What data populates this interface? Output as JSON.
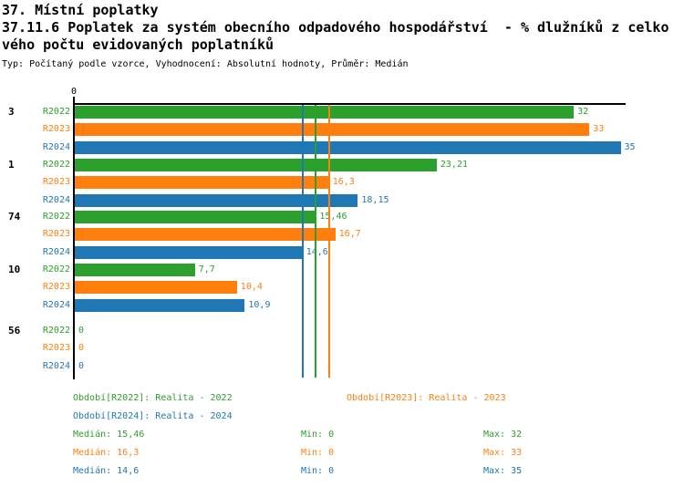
{
  "header": {
    "title": "37. Místní poplatky",
    "subtitle_line1": "37.11.6 Poplatek za systém obecního odpadového hospodářství  - % dlužníků z celko",
    "subtitle_line2": "vého počtu evidovaných poplatníků",
    "meta": "Typ: Počítaný podle vzorce, Vyhodnocení: Absolutní hodnoty, Průměr: Medián"
  },
  "chart_data": {
    "type": "bar",
    "orientation": "horizontal",
    "x_axis": {
      "min": 0,
      "max": 35.3,
      "origin_tick_label": "0",
      "grid": false
    },
    "series": [
      {
        "name": "R2022",
        "color": "#2ca02c"
      },
      {
        "name": "R2023",
        "color": "#ff7f0e"
      },
      {
        "name": "R2024",
        "color": "#1f77b4"
      }
    ],
    "groups": [
      {
        "label": "3",
        "values": [
          32,
          33,
          35
        ],
        "value_labels": [
          "32",
          "33",
          "35"
        ]
      },
      {
        "label": "1",
        "values": [
          23.21,
          16.3,
          18.15
        ],
        "value_labels": [
          "23,21",
          "16,3",
          "18,15"
        ]
      },
      {
        "label": "74",
        "values": [
          15.46,
          16.7,
          14.6
        ],
        "value_labels": [
          "15,46",
          "16,7",
          "14,6"
        ]
      },
      {
        "label": "10",
        "values": [
          7.7,
          10.4,
          10.9
        ],
        "value_labels": [
          "7,7",
          "10,4",
          "10,9"
        ]
      },
      {
        "label": "56",
        "values": [
          0,
          0,
          0
        ],
        "value_labels": [
          "0",
          "0",
          "0"
        ]
      }
    ],
    "median_lines": [
      {
        "series": "R2024",
        "value": 14.6,
        "color": "#1f77b4"
      },
      {
        "series": "R2022",
        "value": 15.46,
        "color": "#2ca02c"
      },
      {
        "series": "R2023",
        "value": 16.3,
        "color": "#ff7f0e"
      }
    ]
  },
  "legend": {
    "periods": [
      {
        "text": "Období[R2022]: Realita - 2022",
        "color": "#2ca02c"
      },
      {
        "text": "Období[R2023]: Realita - 2023",
        "color": "#ff7f0e"
      },
      {
        "text": "Období[R2024]: Realita - 2024",
        "color": "#1f77b4"
      }
    ],
    "stats": [
      {
        "median": "Medián: 15,46",
        "min": "Min: 0",
        "max": "Max: 32",
        "color": "#2ca02c"
      },
      {
        "median": "Medián: 16,3",
        "min": "Min: 0",
        "max": "Max: 33",
        "color": "#ff7f0e"
      },
      {
        "median": "Medián: 14,6",
        "min": "Min: 0",
        "max": "Max: 35",
        "color": "#1f77b4"
      }
    ]
  }
}
